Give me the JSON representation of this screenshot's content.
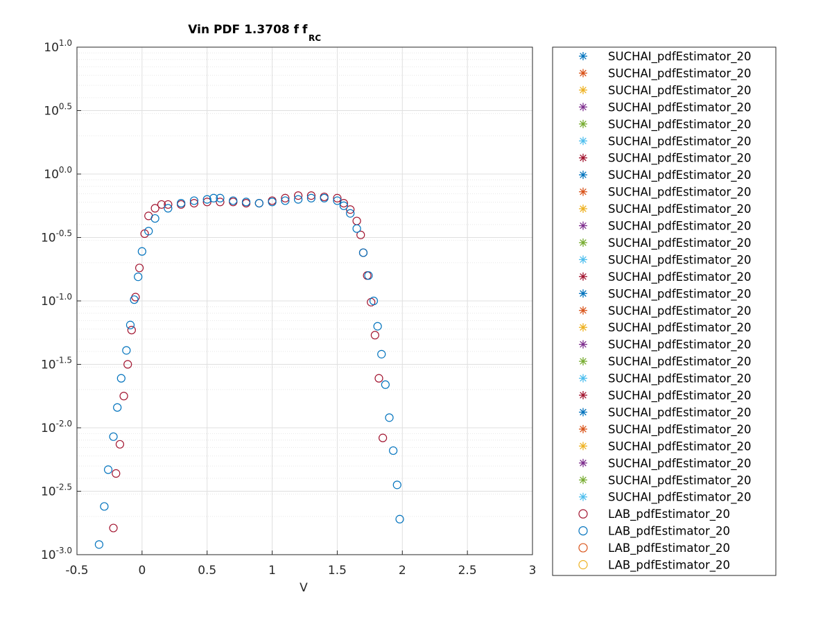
{
  "chart_data": {
    "type": "scatter",
    "title_main": "Vin PDF 1.3708 f",
    "title_sub": "RC",
    "xlabel": "V",
    "ylabel": "",
    "x_range": [
      -0.5,
      3
    ],
    "y_scale": "log",
    "y_range_exponent": [
      -3.0,
      1.0
    ],
    "x_ticks": [
      "-0.5",
      "0",
      "0.5",
      "1",
      "1.5",
      "2",
      "2.5",
      "3"
    ],
    "x_tick_values": [
      -0.5,
      0,
      0.5,
      1,
      1.5,
      2,
      2.5,
      3
    ],
    "y_ticks": [
      {
        "value": 1.0,
        "base": "10",
        "exp": "1.0"
      },
      {
        "value": 0.5,
        "base": "10",
        "exp": "0.5"
      },
      {
        "value": 0.0,
        "base": "10",
        "exp": "0.0"
      },
      {
        "value": -0.5,
        "base": "10",
        "exp": "-0.5"
      },
      {
        "value": -1.0,
        "base": "10",
        "exp": "-1.0"
      },
      {
        "value": -1.5,
        "base": "10",
        "exp": "-1.5"
      },
      {
        "value": -2.0,
        "base": "10",
        "exp": "-2.0"
      },
      {
        "value": -2.5,
        "base": "10",
        "exp": "-2.5"
      },
      {
        "value": -3.0,
        "base": "10",
        "exp": "-3.0"
      }
    ],
    "grid": true,
    "legend_position": "right-outside",
    "colors": {
      "blue": "#0072BD",
      "orange": "#D95319",
      "yellow": "#EDB120",
      "purple": "#7E2F8E",
      "green": "#77AC30",
      "cyan": "#4DBEEE",
      "maroon": "#A2142F"
    },
    "legend": [
      {
        "name": "SUCHAI_pdfEstimator_20",
        "marker": "asterisk",
        "color": "#0072BD"
      },
      {
        "name": "SUCHAI_pdfEstimator_20",
        "marker": "asterisk",
        "color": "#D95319"
      },
      {
        "name": "SUCHAI_pdfEstimator_20",
        "marker": "asterisk",
        "color": "#EDB120"
      },
      {
        "name": "SUCHAI_pdfEstimator_20",
        "marker": "asterisk",
        "color": "#7E2F8E"
      },
      {
        "name": "SUCHAI_pdfEstimator_20",
        "marker": "asterisk",
        "color": "#77AC30"
      },
      {
        "name": "SUCHAI_pdfEstimator_20",
        "marker": "asterisk",
        "color": "#4DBEEE"
      },
      {
        "name": "SUCHAI_pdfEstimator_20",
        "marker": "asterisk",
        "color": "#A2142F"
      },
      {
        "name": "SUCHAI_pdfEstimator_20",
        "marker": "asterisk",
        "color": "#0072BD"
      },
      {
        "name": "SUCHAI_pdfEstimator_20",
        "marker": "asterisk",
        "color": "#D95319"
      },
      {
        "name": "SUCHAI_pdfEstimator_20",
        "marker": "asterisk",
        "color": "#EDB120"
      },
      {
        "name": "SUCHAI_pdfEstimator_20",
        "marker": "asterisk",
        "color": "#7E2F8E"
      },
      {
        "name": "SUCHAI_pdfEstimator_20",
        "marker": "asterisk",
        "color": "#77AC30"
      },
      {
        "name": "SUCHAI_pdfEstimator_20",
        "marker": "asterisk",
        "color": "#4DBEEE"
      },
      {
        "name": "SUCHAI_pdfEstimator_20",
        "marker": "asterisk",
        "color": "#A2142F"
      },
      {
        "name": "SUCHAI_pdfEstimator_20",
        "marker": "asterisk",
        "color": "#0072BD"
      },
      {
        "name": "SUCHAI_pdfEstimator_20",
        "marker": "asterisk",
        "color": "#D95319"
      },
      {
        "name": "SUCHAI_pdfEstimator_20",
        "marker": "asterisk",
        "color": "#EDB120"
      },
      {
        "name": "SUCHAI_pdfEstimator_20",
        "marker": "asterisk",
        "color": "#7E2F8E"
      },
      {
        "name": "SUCHAI_pdfEstimator_20",
        "marker": "asterisk",
        "color": "#77AC30"
      },
      {
        "name": "SUCHAI_pdfEstimator_20",
        "marker": "asterisk",
        "color": "#4DBEEE"
      },
      {
        "name": "SUCHAI_pdfEstimator_20",
        "marker": "asterisk",
        "color": "#A2142F"
      },
      {
        "name": "SUCHAI_pdfEstimator_20",
        "marker": "asterisk",
        "color": "#0072BD"
      },
      {
        "name": "SUCHAI_pdfEstimator_20",
        "marker": "asterisk",
        "color": "#D95319"
      },
      {
        "name": "SUCHAI_pdfEstimator_20",
        "marker": "asterisk",
        "color": "#EDB120"
      },
      {
        "name": "SUCHAI_pdfEstimator_20",
        "marker": "asterisk",
        "color": "#7E2F8E"
      },
      {
        "name": "SUCHAI_pdfEstimator_20",
        "marker": "asterisk",
        "color": "#77AC30"
      },
      {
        "name": "SUCHAI_pdfEstimator_20",
        "marker": "asterisk",
        "color": "#4DBEEE"
      },
      {
        "name": "LAB_pdfEstimator_20",
        "marker": "circle",
        "color": "#A2142F"
      },
      {
        "name": "LAB_pdfEstimator_20",
        "marker": "circle",
        "color": "#0072BD"
      },
      {
        "name": "LAB_pdfEstimator_20",
        "marker": "circle",
        "color": "#D95319"
      },
      {
        "name": "LAB_pdfEstimator_20",
        "marker": "circle",
        "color": "#EDB120"
      }
    ],
    "series": [
      {
        "marker": "circle",
        "color": "#A2142F",
        "x": [
          -0.22,
          -0.2,
          -0.17,
          -0.14,
          -0.11,
          -0.08,
          -0.05,
          -0.02,
          0.02,
          0.05,
          0.1,
          0.15,
          0.2,
          0.3,
          0.4,
          0.5,
          0.6,
          0.7,
          0.8,
          0.9,
          1.0,
          1.1,
          1.2,
          1.3,
          1.4,
          1.5,
          1.55,
          1.6,
          1.65,
          1.68,
          1.7,
          1.73,
          1.76,
          1.79,
          1.82,
          1.85
        ],
        "y": [
          -2.79,
          -2.36,
          -2.13,
          -1.75,
          -1.5,
          -1.23,
          -0.97,
          -0.74,
          -0.47,
          -0.33,
          -0.27,
          -0.24,
          -0.24,
          -0.24,
          -0.23,
          -0.22,
          -0.22,
          -0.22,
          -0.23,
          -0.23,
          -0.21,
          -0.19,
          -0.17,
          -0.17,
          -0.18,
          -0.19,
          -0.23,
          -0.28,
          -0.37,
          -0.48,
          -0.62,
          -0.8,
          -1.01,
          -1.27,
          -1.61,
          -2.08
        ]
      },
      {
        "marker": "circle",
        "color": "#0072BD",
        "x": [
          -0.33,
          -0.29,
          -0.26,
          -0.22,
          -0.19,
          -0.16,
          -0.12,
          -0.09,
          -0.06,
          -0.03,
          0.0,
          0.05,
          0.1,
          0.2,
          0.3,
          0.4,
          0.5,
          0.55,
          0.6,
          0.7,
          0.8,
          0.9,
          1.0,
          1.1,
          1.2,
          1.3,
          1.4,
          1.5,
          1.55,
          1.6,
          1.65,
          1.7,
          1.74,
          1.78,
          1.81,
          1.84,
          1.87,
          1.9,
          1.93,
          1.96,
          1.98
        ],
        "y": [
          -2.92,
          -2.62,
          -2.33,
          -2.07,
          -1.84,
          -1.61,
          -1.39,
          -1.19,
          -0.99,
          -0.81,
          -0.61,
          -0.45,
          -0.35,
          -0.27,
          -0.23,
          -0.21,
          -0.2,
          -0.19,
          -0.19,
          -0.21,
          -0.22,
          -0.23,
          -0.22,
          -0.21,
          -0.2,
          -0.19,
          -0.19,
          -0.21,
          -0.25,
          -0.31,
          -0.43,
          -0.62,
          -0.8,
          -1.0,
          -1.2,
          -1.42,
          -1.66,
          -1.92,
          -2.18,
          -2.45,
          -2.72
        ]
      }
    ]
  }
}
